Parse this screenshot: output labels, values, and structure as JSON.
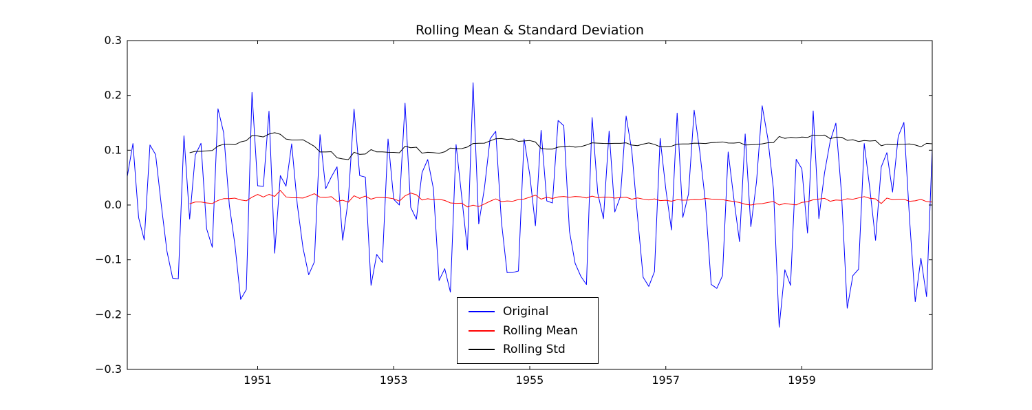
{
  "figure": {
    "background": "#ffffff"
  },
  "chart_data": {
    "type": "line",
    "title": "Rolling Mean & Standard Deviation",
    "x_start_year": 1949,
    "x_start_month": 2,
    "points_per_year": 12,
    "rolling_window": 12,
    "ylim": [
      -0.3,
      0.3
    ],
    "yticks": [
      0.3,
      0.2,
      0.1,
      0.0,
      -0.1,
      -0.2,
      -0.3
    ],
    "ytick_labels": [
      "0.3",
      "0.2",
      "0.1",
      "0.0",
      "−0.1",
      "−0.2",
      "−0.3"
    ],
    "xticks": [
      1951,
      1953,
      1955,
      1957,
      1959
    ],
    "xtick_labels": [
      "1951",
      "1953",
      "1955",
      "1957",
      "1959"
    ],
    "grid": false,
    "legend": {
      "position": "lower center",
      "entries": [
        "Original",
        "Rolling Mean",
        "Rolling Std"
      ]
    },
    "series": [
      {
        "name": "Original",
        "color": "#0000ff",
        "values": [
          0.0522,
          0.1121,
          -0.023,
          -0.064,
          0.1095,
          0.0919,
          0.0,
          -0.0846,
          -0.1335,
          -0.1347,
          0.1263,
          -0.0257,
          0.0913,
          0.1125,
          -0.0435,
          -0.077,
          0.1756,
          0.1319,
          0.0,
          -0.0732,
          -0.1722,
          -0.1542,
          0.2054,
          0.0351,
          0.0339,
          0.1712,
          -0.088,
          0.0537,
          0.0343,
          0.1115,
          0.0,
          -0.0784,
          -0.1273,
          -0.104,
          0.1284,
          0.0297,
          0.0513,
          0.0697,
          -0.0642,
          0.011,
          0.175,
          0.0536,
          0.0509,
          -0.1466,
          -0.0901,
          -0.1048,
          0.1204,
          0.0103,
          0.0,
          0.1857,
          -0.0042,
          -0.0259,
          0.0593,
          0.0829,
          0.0299,
          -0.1377,
          -0.1162,
          -0.1589,
          0.1103,
          0.0148,
          -0.0817,
          0.2231,
          -0.0346,
          0.0304,
          0.1206,
          0.1345,
          -0.0303,
          -0.1233,
          -0.1231,
          -0.1205,
          0.1205,
          0.0552,
          -0.0379,
          0.1362,
          0.0075,
          0.0037,
          0.1542,
          0.1446,
          -0.0478,
          -0.1063,
          -0.1299,
          -0.1451,
          0.1596,
          0.0214,
          -0.025,
          0.1349,
          -0.0127,
          0.0158,
          0.1622,
          0.0992,
          -0.0196,
          -0.1318,
          -0.1485,
          -0.1215,
          0.1215,
          0.029,
          -0.0455,
          0.1678,
          -0.0227,
          0.0199,
          0.1729,
          0.097,
          0.0043,
          -0.1449,
          -0.1521,
          -0.129,
          0.0968,
          0.0118,
          -0.0669,
          0.1296,
          -0.0394,
          0.0422,
          0.181,
          0.1211,
          0.0281,
          -0.2231,
          -0.1181,
          -0.1467,
          0.0835,
          0.066,
          -0.0513,
          0.1716,
          -0.0249,
          0.0588,
          0.1167,
          0.1493,
          0.0199,
          -0.1884,
          -0.1289,
          -0.1172,
          0.1122,
          0.0292,
          -0.0644,
          0.0692,
          0.0955,
          0.0236,
          0.1253,
          0.1507,
          -0.0261,
          -0.1764,
          -0.0971,
          -0.1673,
          0.1023
        ]
      },
      {
        "name": "Rolling Mean",
        "color": "#ff0000",
        "derived": "rolling_mean_of_original",
        "window": 12
      },
      {
        "name": "Rolling Std",
        "color": "#000000",
        "derived": "rolling_std_of_original",
        "window": 12
      }
    ]
  }
}
